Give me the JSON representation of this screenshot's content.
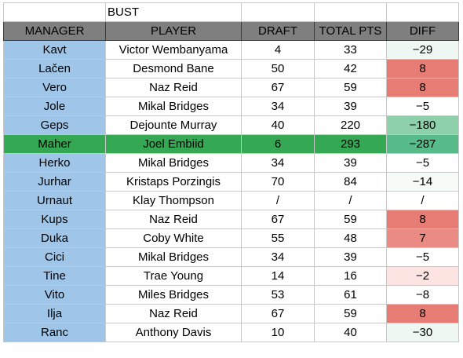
{
  "sheet": {
    "title": "BUST",
    "headers": [
      "MANAGER",
      "PLAYER",
      "DRAFT",
      "TOTAL PTS",
      "DIFF"
    ],
    "colors": {
      "header_bg": "#7f7f7f",
      "manager_bg": "#9fc5e8",
      "highlight_row_bg": "#34a853"
    },
    "rows": [
      {
        "manager": "Kavt",
        "player": "Victor Wembanyama",
        "draft": "4",
        "total_pts": "33",
        "diff": "−29",
        "diff_color": "#eef7f1",
        "highlight": false
      },
      {
        "manager": "Lačen",
        "player": "Desmond Bane",
        "draft": "50",
        "total_pts": "42",
        "diff": "8",
        "diff_color": "#e67c73",
        "highlight": false
      },
      {
        "manager": "Vero",
        "player": "Naz Reid",
        "draft": "67",
        "total_pts": "59",
        "diff": "8",
        "diff_color": "#e67c73",
        "highlight": false
      },
      {
        "manager": "Jole",
        "player": "Mikal Bridges",
        "draft": "34",
        "total_pts": "39",
        "diff": "−5",
        "diff_color": "#ffffff",
        "highlight": false
      },
      {
        "manager": "Geps",
        "player": "Dejounte Murray",
        "draft": "40",
        "total_pts": "220",
        "diff": "−180",
        "diff_color": "#8ed0aa",
        "highlight": false
      },
      {
        "manager": "Maher",
        "player": "Joel Embiid",
        "draft": "6",
        "total_pts": "293",
        "diff": "−287",
        "diff_color": "#57bb8a",
        "highlight": true
      },
      {
        "manager": "Herko",
        "player": "Mikal Bridges",
        "draft": "34",
        "total_pts": "39",
        "diff": "−5",
        "diff_color": "#ffffff",
        "highlight": false
      },
      {
        "manager": "Jurhar",
        "player": "Kristaps Porzingis",
        "draft": "70",
        "total_pts": "84",
        "diff": "−14",
        "diff_color": "#f6fbf8",
        "highlight": false
      },
      {
        "manager": "Urnaut",
        "player": "Klay Thompson",
        "draft": "/",
        "total_pts": "/",
        "diff": "/",
        "diff_color": "#ffffff",
        "highlight": false
      },
      {
        "manager": "Kups",
        "player": "Naz Reid",
        "draft": "67",
        "total_pts": "59",
        "diff": "8",
        "diff_color": "#e67c73",
        "highlight": false
      },
      {
        "manager": "Duka",
        "player": "Coby White",
        "draft": "55",
        "total_pts": "48",
        "diff": "7",
        "diff_color": "#ea8b83",
        "highlight": false
      },
      {
        "manager": "Cici",
        "player": "Mikal Bridges",
        "draft": "34",
        "total_pts": "39",
        "diff": "−5",
        "diff_color": "#ffffff",
        "highlight": false
      },
      {
        "manager": "Tine",
        "player": "Trae Young",
        "draft": "14",
        "total_pts": "16",
        "diff": "−2",
        "diff_color": "#fce4e2",
        "highlight": false
      },
      {
        "manager": "Vito",
        "player": "Miles Bridges",
        "draft": "53",
        "total_pts": "61",
        "diff": "−8",
        "diff_color": "#ffffff",
        "highlight": false
      },
      {
        "manager": "Ilja",
        "player": "Naz Reid",
        "draft": "67",
        "total_pts": "59",
        "diff": "8",
        "diff_color": "#e67c73",
        "highlight": false
      },
      {
        "manager": "Ranc",
        "player": "Anthony Davis",
        "draft": "10",
        "total_pts": "40",
        "diff": "−30",
        "diff_color": "#eef7f1",
        "highlight": false
      }
    ]
  }
}
